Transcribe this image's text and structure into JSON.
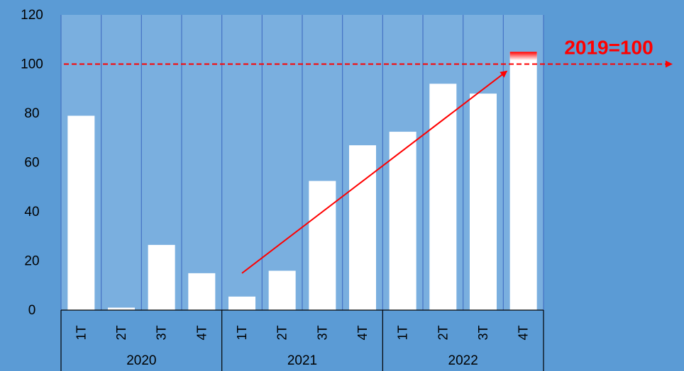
{
  "chart_data": {
    "type": "bar",
    "title": "",
    "xlabel": "",
    "ylabel": "",
    "ylim": [
      0,
      120
    ],
    "yticks": [
      0,
      20,
      40,
      60,
      80,
      100,
      120
    ],
    "groups": [
      {
        "label": "2020",
        "quarters": [
          "1T",
          "2T",
          "3T",
          "4T"
        ]
      },
      {
        "label": "2021",
        "quarters": [
          "1T",
          "2T",
          "3T",
          "4T"
        ]
      },
      {
        "label": "2022",
        "quarters": [
          "1T",
          "2T",
          "3T",
          "4T"
        ]
      }
    ],
    "categories": [
      "2020 1T",
      "2020 2T",
      "2020 3T",
      "2020 4T",
      "2021 1T",
      "2021 2T",
      "2021 3T",
      "2021 4T",
      "2022 1T",
      "2022 2T",
      "2022 3T",
      "2022 4T"
    ],
    "values": [
      79,
      1,
      26.5,
      15,
      5.5,
      16,
      52.5,
      67,
      72.5,
      92,
      88,
      105
    ],
    "reference_line": {
      "value": 100,
      "label": "2019=100",
      "style": "dashed"
    },
    "trend_arrow": {
      "from": {
        "category": "2021 1T",
        "y": 15
      },
      "to": {
        "category": "2022 4T",
        "y": 97
      }
    },
    "grid": false,
    "legend": "none",
    "colors": {
      "background": "#5b9bd5",
      "plot_area": "#7aafdf",
      "bars": "#ffffff",
      "reference": "#ff0000",
      "axis": "#000000"
    }
  }
}
